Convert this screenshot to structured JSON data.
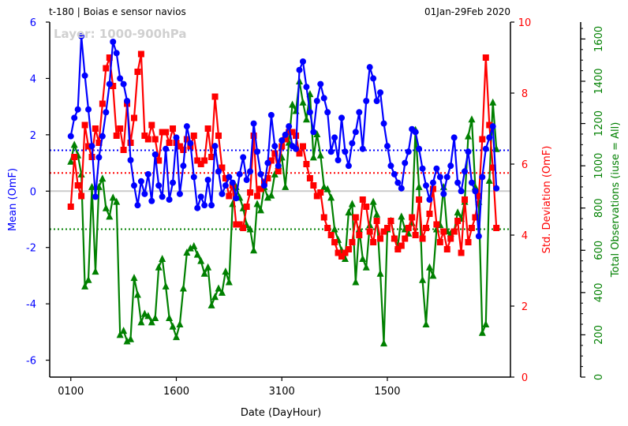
{
  "header": {
    "left": "t-180  |  Boias e sensor navios",
    "right": "01Jan-29Feb 2020",
    "watermark": "Layer: 1000-900hPa"
  },
  "colors": {
    "mean": "#0000ff",
    "std": "#ff0000",
    "nobs": "#008000",
    "zero": "#cccccc",
    "axis": "#000000",
    "watermark": "#d0d0d0"
  },
  "chart_data": {
    "type": "line",
    "title": "t-180  |  Boias e sensor navios",
    "xlabel": "Date (DayHour)",
    "x_tick_labels": [
      "0100",
      "1600",
      "3100",
      "1500"
    ],
    "x_tick_positions": [
      1,
      31,
      61,
      91
    ],
    "x_range": [
      -5,
      126
    ],
    "n_points": 122,
    "left_axis": {
      "label": "Mean (OmF)",
      "ylim": [
        -6.6,
        6.0
      ],
      "ticks": [
        -6,
        -4,
        -2,
        0,
        2,
        4,
        6
      ],
      "reference_line": 1.45
    },
    "right_axis": {
      "label": "Std. Deviation (OmF)",
      "ylim": [
        0,
        10
      ],
      "ticks": [
        0,
        2,
        4,
        6,
        8,
        10
      ],
      "reference_line": 5.75
    },
    "far_right_axis": {
      "label": "Total Observations (iuse = All)",
      "ylim": [
        0,
        1680
      ],
      "ticks": [
        0,
        200,
        400,
        600,
        800,
        1000,
        1200,
        1400,
        1600
      ],
      "reference_line": 700
    },
    "series": [
      {
        "name": "Mean (OmF)",
        "axis": "left",
        "marker": "circle",
        "values": [
          1.95,
          2.6,
          2.9,
          5.5,
          4.1,
          2.9,
          1.6,
          -0.2,
          1.2,
          1.95,
          2.8,
          3.8,
          5.3,
          4.9,
          4.0,
          3.8,
          3.2,
          1.1,
          0.2,
          -0.5,
          0.35,
          -0.1,
          0.6,
          -0.35,
          1.3,
          0.2,
          -0.2,
          1.5,
          -0.3,
          0.3,
          1.9,
          -0.1,
          0.9,
          2.3,
          1.7,
          0.5,
          -0.6,
          -0.2,
          -0.5,
          0.4,
          -0.5,
          1.6,
          0.7,
          -0.1,
          0.2,
          0.5,
          0.3,
          -0.25,
          0.6,
          1.2,
          0.4,
          0.7,
          2.4,
          1.4,
          0.6,
          0.2,
          1.0,
          2.7,
          1.6,
          0.9,
          1.8,
          2.0,
          2.3,
          1.6,
          1.5,
          4.3,
          4.6,
          3.7,
          2.8,
          2.1,
          3.2,
          3.8,
          3.3,
          2.8,
          1.4,
          1.9,
          1.1,
          2.6,
          1.4,
          0.9,
          1.7,
          2.1,
          2.8,
          1.5,
          3.2,
          4.4,
          4.0,
          3.2,
          3.5,
          2.4,
          1.6,
          0.9,
          0.6,
          0.3,
          0.1,
          1.0,
          1.4,
          2.2,
          2.1,
          1.5,
          0.8,
          0.2,
          -0.3,
          0.3,
          0.8,
          0.5,
          -0.1,
          0.5,
          0.9,
          1.9,
          0.3,
          0.0,
          0.7,
          1.4,
          0.3,
          0.0,
          -1.6,
          0.5,
          1.5,
          1.9,
          2.3,
          0.1
        ],
        "color": "#0000ff"
      },
      {
        "name": "Std. Deviation (OmF)",
        "axis": "right",
        "marker": "square",
        "values": [
          4.8,
          6.2,
          5.4,
          5.1,
          7.1,
          6.5,
          6.2,
          7.0,
          6.6,
          7.7,
          8.7,
          9.0,
          8.2,
          6.8,
          7.0,
          6.4,
          7.7,
          6.6,
          7.3,
          8.6,
          9.1,
          6.8,
          6.7,
          7.1,
          6.7,
          6.1,
          6.9,
          6.9,
          6.6,
          7.0,
          6.6,
          6.5,
          6.4,
          6.7,
          6.5,
          6.8,
          6.1,
          6.0,
          6.1,
          7.0,
          6.2,
          7.9,
          6.8,
          5.9,
          5.6,
          5.1,
          5.4,
          4.3,
          4.3,
          4.2,
          4.8,
          5.2,
          6.8,
          5.1,
          5.3,
          5.5,
          5.6,
          6.1,
          6.3,
          5.8,
          6.5,
          6.7,
          6.9,
          6.9,
          6.8,
          6.3,
          6.5,
          6.0,
          5.6,
          5.4,
          5.1,
          5.2,
          4.5,
          4.2,
          4.0,
          3.8,
          3.5,
          3.4,
          3.5,
          3.6,
          3.8,
          4.5,
          4.0,
          5.0,
          4.8,
          4.1,
          3.8,
          4.4,
          3.9,
          4.1,
          4.2,
          4.4,
          3.9,
          3.6,
          3.7,
          3.9,
          4.2,
          4.5,
          4.0,
          5.0,
          3.9,
          4.2,
          4.6,
          5.3,
          4.3,
          3.8,
          4.1,
          3.6,
          3.9,
          4.1,
          4.4,
          3.5,
          5.0,
          3.8,
          4.2,
          4.5,
          5.1,
          6.7,
          9.0,
          7.1,
          5.9,
          4.2
        ],
        "color": "#ff0000"
      },
      {
        "name": "Total Observations (iuse = All)",
        "axis": "far-right",
        "marker": "triangle",
        "values": [
          1020,
          1100,
          1050,
          960,
          430,
          460,
          900,
          500,
          900,
          940,
          800,
          760,
          850,
          830,
          200,
          220,
          170,
          180,
          470,
          390,
          260,
          300,
          290,
          260,
          280,
          520,
          560,
          430,
          280,
          240,
          190,
          250,
          420,
          590,
          610,
          620,
          580,
          550,
          490,
          520,
          340,
          380,
          420,
          400,
          500,
          450,
          820,
          900,
          850,
          800,
          720,
          700,
          600,
          820,
          790,
          900,
          850,
          860,
          960,
          1000,
          1040,
          900,
          1110,
          1290,
          1260,
          1400,
          1300,
          1220,
          1340,
          1040,
          1150,
          1050,
          900,
          890,
          850,
          700,
          650,
          600,
          560,
          780,
          820,
          450,
          700,
          560,
          520,
          720,
          830,
          770,
          490,
          160,
          700,
          740,
          660,
          620,
          760,
          700,
          680,
          730,
          1170,
          900,
          460,
          250,
          520,
          480,
          700,
          720,
          900,
          690,
          680,
          690,
          780,
          750,
          830,
          1140,
          1220,
          900,
          830,
          210,
          250,
          930,
          1300,
          1080
        ],
        "color": "#008000"
      }
    ]
  }
}
